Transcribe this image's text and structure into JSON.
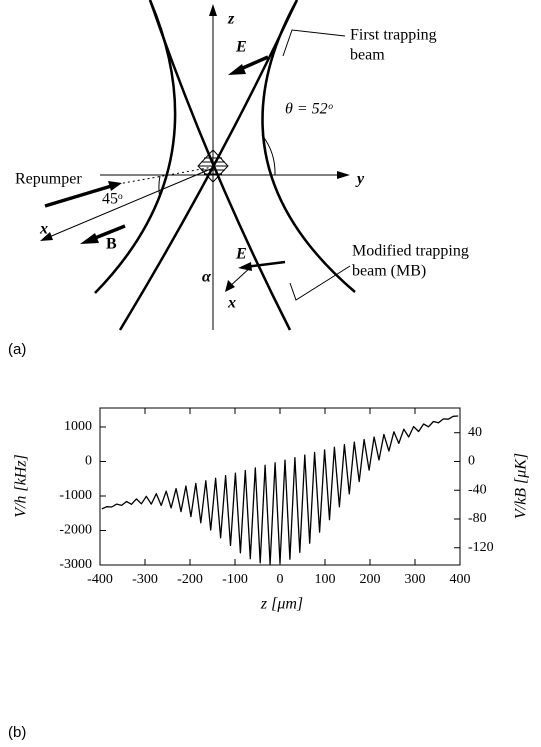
{
  "diagram": {
    "z_label": "z",
    "y_label": "y",
    "x_label": "x",
    "x2_label": "x",
    "e_label_top": "E",
    "e_label_bottom": "E",
    "b_label": "B",
    "alpha_label": "α",
    "first_beam": [
      "First trapping",
      "beam"
    ],
    "modified_beam": [
      "Modified trapping",
      "beam (MB)"
    ],
    "repumper": "Repumper",
    "angle_45": "45ᵒ",
    "theta": "θ = 52ᵒ"
  },
  "panel_labels": [
    "(a)",
    "(b)"
  ],
  "chart_data": {
    "type": "line",
    "color": "#000000",
    "x_label": "z [μm]",
    "y_label": "V/h [kHz]",
    "y2_label": "V/kB [μK]",
    "x": [
      -396,
      -385,
      -374,
      -363,
      -352,
      -341,
      -330,
      -319,
      -308,
      -297,
      -286,
      -275,
      -264,
      -253,
      -242,
      -231,
      -220,
      -209,
      -198,
      -187,
      -176,
      -165,
      -154,
      -143,
      -132,
      -121,
      -110,
      -99,
      -88,
      -77,
      -66,
      -55,
      -44,
      -33,
      -22,
      -11,
      0,
      11,
      22,
      33,
      44,
      55,
      66,
      77,
      88,
      99,
      110,
      121,
      132,
      143,
      154,
      165,
      176,
      187,
      198,
      209,
      220,
      231,
      242,
      253,
      264,
      275,
      286,
      297,
      308,
      319,
      330,
      341,
      352,
      363,
      374,
      385,
      396
    ],
    "values": [
      -1375,
      -1309,
      -1319,
      -1234,
      -1272,
      -1159,
      -1240,
      -1085,
      -1225,
      -1010,
      -1234,
      -935,
      -1273,
      -860,
      -1345,
      -785,
      -1453,
      -711,
      -1598,
      -636,
      -1778,
      -561,
      -1987,
      -486,
      -2211,
      -411,
      -2436,
      -337,
      -2645,
      -262,
      -2817,
      -187,
      -2936,
      -112,
      -2983,
      -37,
      -2950,
      37,
      -2833,
      112,
      -2636,
      187,
      -2369,
      262,
      -2047,
      337,
      -1688,
      411,
      -1313,
      486,
      -939,
      561,
      -582,
      636,
      -252,
      711,
      43,
      785,
      301,
      860,
      523,
      935,
      710,
      1010,
      869,
      1085,
      1004,
      1159,
      1122,
      1234,
      1225,
      1309,
      1317
    ],
    "xlim": [
      -400,
      400
    ],
    "xticks": [
      -400,
      -300,
      -200,
      -100,
      0,
      100,
      200,
      300,
      400
    ],
    "ylim": [
      -3000,
      1550
    ],
    "yticks": [
      1000,
      0,
      -1000,
      -2000,
      -3000
    ],
    "y2lim": [
      -144,
      74.4
    ],
    "y2ticks": [
      40,
      0,
      -40,
      -80,
      -120
    ]
  }
}
